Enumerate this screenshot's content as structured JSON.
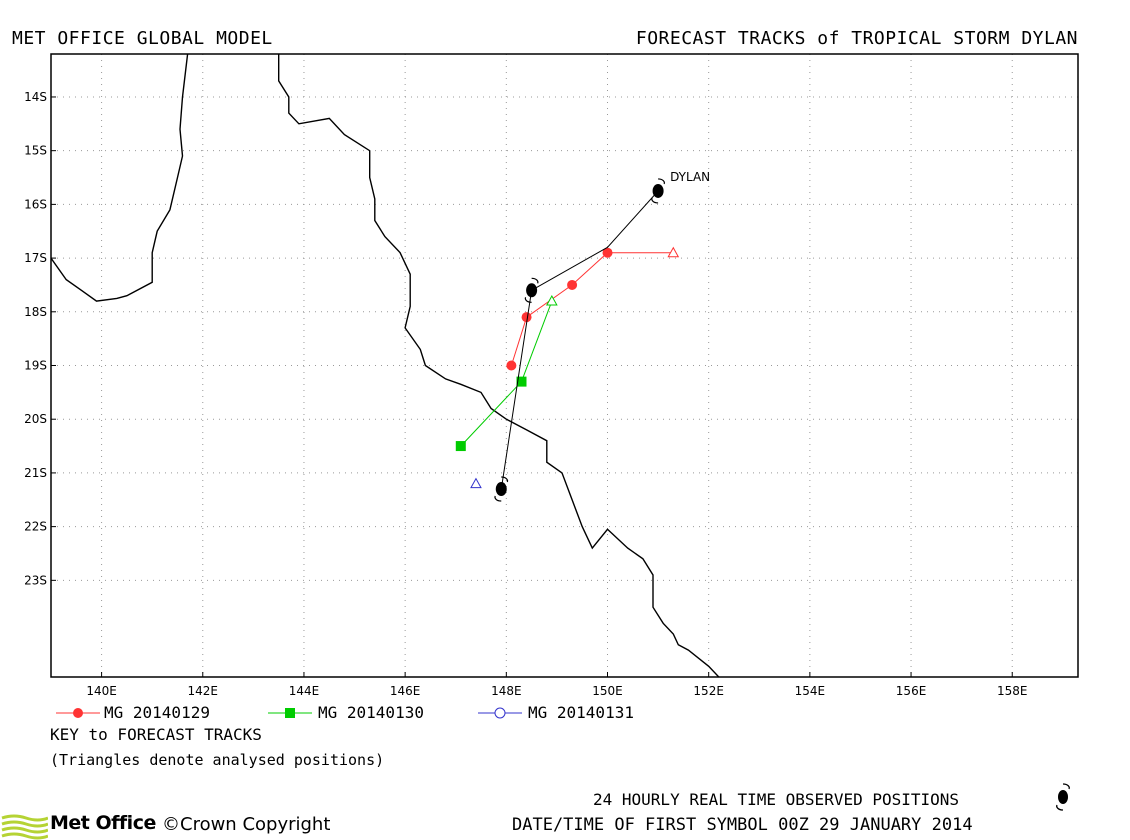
{
  "header": {
    "left_title": "MET OFFICE GLOBAL MODEL",
    "right_title": "FORECAST TRACKS of TROPICAL STORM DYLAN"
  },
  "map": {
    "lon_range": [
      139,
      159.3
    ],
    "lat_range": [
      -24.8,
      -13.2
    ],
    "lat_ticks": [
      {
        "value": -14,
        "label": "14S"
      },
      {
        "value": -15,
        "label": "15S"
      },
      {
        "value": -16,
        "label": "16S"
      },
      {
        "value": -17,
        "label": "17S"
      },
      {
        "value": -18,
        "label": "18S"
      },
      {
        "value": -19,
        "label": "19S"
      },
      {
        "value": -20,
        "label": "20S"
      },
      {
        "value": -21,
        "label": "21S"
      },
      {
        "value": -22,
        "label": "22S"
      },
      {
        "value": -23,
        "label": "23S"
      }
    ],
    "lon_ticks": [
      {
        "value": 140,
        "label": "140E"
      },
      {
        "value": 142,
        "label": "142E"
      },
      {
        "value": 144,
        "label": "144E"
      },
      {
        "value": 146,
        "label": "146E"
      },
      {
        "value": 148,
        "label": "148E"
      },
      {
        "value": 150,
        "label": "150E"
      },
      {
        "value": 152,
        "label": "152E"
      },
      {
        "value": 154,
        "label": "154E"
      },
      {
        "value": 156,
        "label": "156E"
      },
      {
        "value": 158,
        "label": "158E"
      }
    ],
    "grid": true,
    "storm_label": "DYLAN",
    "colors": {
      "mg0129": "#ff3333",
      "mg0130": "#00cc00",
      "mg0131": "#3333cc",
      "observed": "#000000"
    },
    "coast_west": [
      [
        141.7,
        -13.2
      ],
      [
        141.6,
        -14.0
      ],
      [
        141.55,
        -14.6
      ],
      [
        141.6,
        -15.1
      ],
      [
        141.5,
        -15.5
      ],
      [
        141.35,
        -16.1
      ],
      [
        141.1,
        -16.5
      ],
      [
        141.0,
        -16.9
      ],
      [
        141.0,
        -17.45
      ],
      [
        140.5,
        -17.7
      ],
      [
        140.3,
        -17.75
      ],
      [
        139.9,
        -17.8
      ],
      [
        139.6,
        -17.6
      ],
      [
        139.3,
        -17.4
      ],
      [
        139.0,
        -17.0
      ]
    ],
    "coast_east": [
      [
        143.5,
        -13.2
      ],
      [
        143.5,
        -13.7
      ],
      [
        143.7,
        -14.0
      ],
      [
        143.7,
        -14.3
      ],
      [
        143.9,
        -14.5
      ],
      [
        144.5,
        -14.4
      ],
      [
        144.8,
        -14.7
      ],
      [
        145.3,
        -15.0
      ],
      [
        145.3,
        -15.5
      ],
      [
        145.4,
        -15.9
      ],
      [
        145.4,
        -16.3
      ],
      [
        145.6,
        -16.6
      ],
      [
        145.9,
        -16.9
      ],
      [
        146.1,
        -17.3
      ],
      [
        146.1,
        -17.9
      ],
      [
        146.0,
        -18.3
      ],
      [
        146.3,
        -18.7
      ],
      [
        146.4,
        -19.0
      ],
      [
        146.8,
        -19.25
      ],
      [
        147.1,
        -19.35
      ],
      [
        147.5,
        -19.5
      ],
      [
        147.7,
        -19.8
      ],
      [
        148.0,
        -20.0
      ],
      [
        148.4,
        -20.2
      ],
      [
        148.8,
        -20.4
      ],
      [
        148.8,
        -20.8
      ],
      [
        149.1,
        -21.0
      ],
      [
        149.3,
        -21.5
      ],
      [
        149.5,
        -22.0
      ],
      [
        149.7,
        -22.4
      ],
      [
        150.0,
        -22.05
      ],
      [
        150.4,
        -22.4
      ],
      [
        150.7,
        -22.6
      ],
      [
        150.9,
        -22.9
      ],
      [
        150.9,
        -23.2
      ],
      [
        150.9,
        -23.5
      ],
      [
        151.1,
        -23.8
      ],
      [
        151.3,
        -24.0
      ],
      [
        151.4,
        -24.2
      ],
      [
        151.6,
        -24.3
      ],
      [
        152.0,
        -24.6
      ],
      [
        152.2,
        -24.8
      ]
    ]
  },
  "tracks": [
    {
      "name": "MG 20140129",
      "points": [
        [
          151.3,
          -16.9
        ],
        [
          150.0,
          -16.9
        ],
        [
          149.3,
          -17.5
        ],
        [
          148.4,
          -18.1
        ],
        [
          148.1,
          -19.0
        ]
      ]
    },
    {
      "name": "MG 20140130",
      "points": [
        [
          148.9,
          -17.8
        ],
        [
          148.3,
          -19.3
        ],
        [
          147.1,
          -20.5
        ]
      ]
    },
    {
      "name": "MG 20140131",
      "points": [
        [
          147.4,
          -21.2
        ]
      ]
    }
  ],
  "observed": [
    [
      151.0,
      -15.75
    ],
    [
      150.0,
      -16.8
    ],
    [
      148.5,
      -17.6
    ],
    [
      147.9,
      -21.3
    ]
  ],
  "legend": {
    "series": [
      "MG 20140129",
      "MG 20140130",
      "MG 20140131"
    ],
    "key_title": "KEY to FORECAST TRACKS",
    "key_note": "(Triangles denote analysed positions)"
  },
  "footer": {
    "observed_positions": "24 HOURLY REAL TIME OBSERVED POSITIONS",
    "first_symbol_time": "DATE/TIME OF FIRST SYMBOL 00Z 29 JANUARY 2014",
    "logo_text": "Met Office",
    "copyright": "©Crown Copyright"
  }
}
